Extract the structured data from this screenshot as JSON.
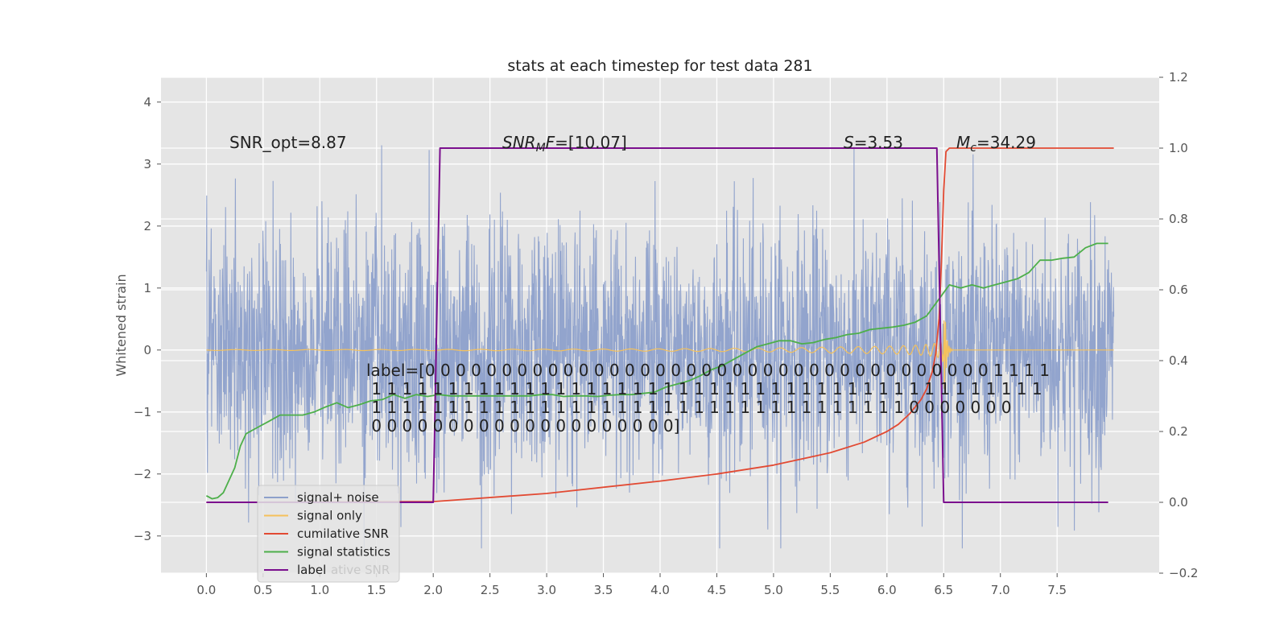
{
  "chart_data": {
    "type": "line",
    "title": "stats at each timestep for test data 281",
    "ylabel": "Whitened strain",
    "xlabel": "",
    "xlim": [
      -0.4,
      8.4
    ],
    "ylim": [
      -3.6,
      4.4
    ],
    "y2lim": [
      -0.2,
      1.2
    ],
    "grid": true,
    "legend_position": "lower-left",
    "x_ticks": [
      0.0,
      0.5,
      1.0,
      1.5,
      2.0,
      2.5,
      3.0,
      3.5,
      4.0,
      4.5,
      5.0,
      5.5,
      6.0,
      6.5,
      7.0,
      7.5
    ],
    "x_tick_labels": [
      "0.0",
      "0.5",
      "1.0",
      "1.5",
      "2.0",
      "2.5",
      "3.0",
      "3.5",
      "4.0",
      "4.5",
      "5.0",
      "5.5",
      "6.0",
      "6.5",
      "7.0",
      "7.5"
    ],
    "y_ticks": [
      -3,
      -2,
      -1,
      0,
      1,
      2,
      3,
      4
    ],
    "y_tick_labels": [
      "−3",
      "−2",
      "−1",
      "0",
      "1",
      "2",
      "3",
      "4"
    ],
    "y2_ticks": [
      -0.2,
      0.0,
      0.2,
      0.4,
      0.6,
      0.8,
      1.0,
      1.2
    ],
    "y2_tick_labels": [
      "−0.2",
      "0.0",
      "0.2",
      "0.4",
      "0.6",
      "0.8",
      "1.0",
      "1.2"
    ],
    "annotations": {
      "snr_opt": "SNR_opt=8.87",
      "snr_mf_main": "SNR",
      "snr_mf_sub": "M",
      "snr_mf_italic": "F",
      "snr_mf_value": "=[10.07]",
      "s_symbol": "S",
      "s_value": "=3.53",
      "mc_symbol": "M",
      "mc_sub": "c",
      "mc_value": "=34.29",
      "label_lines": [
        "label=[0 0 0 0 0 0 0 0 0 0 0 0 0 0 0 0 0 0 0 0 0 0 0 0 0 0 0 0 0 0 0 0 0 0 0 0 0 1 1 1 1",
        " 1 1 1 1 1 1 1 1 1 1 1 1 1 1 1 1 1 1 1 1 1 1 1 1 1 1 1 1 1 1 1 1 1 1 1 1 1 1 1 1 1 1 1 1",
        " 1 1 1 1 1 1 1 1 1 1 1 1 1 1 1 1 1 1 1 1 1 1 1 1 1 1 1 1 1 1 1 1 1 1 1 0 0 0 0 0 0 0",
        " 0 0 0 0 0 0 0 0 0 0 0 0 0 0 0 0 0 0 0 0]"
      ]
    },
    "legend_ghost_text": "ative SNR",
    "series": [
      {
        "name": "signal+ noise",
        "color": "#8da0cb",
        "axis": "left",
        "style": "noise",
        "x_range": [
          0.0,
          8.0
        ],
        "std": 1.0
      },
      {
        "name": "signal only",
        "color": "#f5c15b",
        "axis": "left",
        "style": "chirp",
        "x_range": [
          0.0,
          8.0
        ],
        "merger": 6.5
      },
      {
        "name": "cumilative SNR",
        "color": "#e24a33",
        "axis": "right",
        "x": [
          0.0,
          2.0,
          3.0,
          4.0,
          4.5,
          5.0,
          5.5,
          5.8,
          6.0,
          6.1,
          6.2,
          6.3,
          6.35,
          6.4,
          6.43,
          6.46,
          6.48,
          6.5,
          6.52,
          6.55,
          8.0
        ],
        "y": [
          0.0,
          0.002,
          0.025,
          0.06,
          0.08,
          0.105,
          0.14,
          0.17,
          0.2,
          0.22,
          0.25,
          0.29,
          0.32,
          0.37,
          0.42,
          0.52,
          0.68,
          0.88,
          0.99,
          1.0,
          1.0
        ]
      },
      {
        "name": "signal statistics",
        "color": "#4daf4a",
        "axis": "left",
        "x": [
          0.0,
          0.05,
          0.1,
          0.15,
          0.25,
          0.3,
          0.35,
          0.45,
          0.55,
          0.65,
          0.75,
          0.85,
          0.95,
          1.05,
          1.15,
          1.25,
          1.35,
          1.45,
          1.55,
          1.65,
          1.75,
          1.85,
          1.95,
          2.05,
          2.15,
          2.25,
          2.35,
          2.45,
          2.55,
          2.65,
          2.75,
          2.85,
          2.95,
          3.05,
          3.15,
          3.25,
          3.35,
          3.45,
          3.55,
          3.65,
          3.75,
          3.85,
          3.95,
          4.05,
          4.15,
          4.25,
          4.35,
          4.45,
          4.55,
          4.65,
          4.75,
          4.85,
          4.95,
          5.05,
          5.15,
          5.25,
          5.35,
          5.45,
          5.55,
          5.65,
          5.75,
          5.85,
          5.95,
          6.05,
          6.15,
          6.25,
          6.35,
          6.45,
          6.55,
          6.65,
          6.75,
          6.85,
          6.95,
          7.05,
          7.15,
          7.25,
          7.35,
          7.45,
          7.55,
          7.65,
          7.75,
          7.85,
          7.95
        ],
        "y": [
          -2.35,
          -2.4,
          -2.38,
          -2.3,
          -1.9,
          -1.55,
          -1.35,
          -1.25,
          -1.15,
          -1.05,
          -1.05,
          -1.05,
          -1.0,
          -0.92,
          -0.85,
          -0.93,
          -0.88,
          -0.82,
          -0.8,
          -0.72,
          -0.78,
          -0.72,
          -0.75,
          -0.72,
          -0.74,
          -0.74,
          -0.74,
          -0.74,
          -0.74,
          -0.74,
          -0.74,
          -0.74,
          -0.72,
          -0.72,
          -0.75,
          -0.74,
          -0.74,
          -0.75,
          -0.73,
          -0.72,
          -0.72,
          -0.7,
          -0.68,
          -0.6,
          -0.55,
          -0.5,
          -0.42,
          -0.32,
          -0.25,
          -0.15,
          -0.05,
          0.05,
          0.1,
          0.15,
          0.15,
          0.1,
          0.12,
          0.17,
          0.2,
          0.25,
          0.27,
          0.33,
          0.35,
          0.37,
          0.4,
          0.45,
          0.55,
          0.8,
          1.05,
          1.0,
          1.05,
          1.0,
          1.05,
          1.1,
          1.15,
          1.25,
          1.45,
          1.45,
          1.48,
          1.5,
          1.65,
          1.72,
          1.72
        ]
      },
      {
        "name": "label",
        "color": "#7b0f8e",
        "axis": "right",
        "x": [
          0.0,
          2.0,
          2.06,
          6.44,
          6.5,
          7.95
        ],
        "y": [
          0.0,
          0.0,
          1.0,
          1.0,
          0.0,
          0.0
        ]
      }
    ]
  }
}
